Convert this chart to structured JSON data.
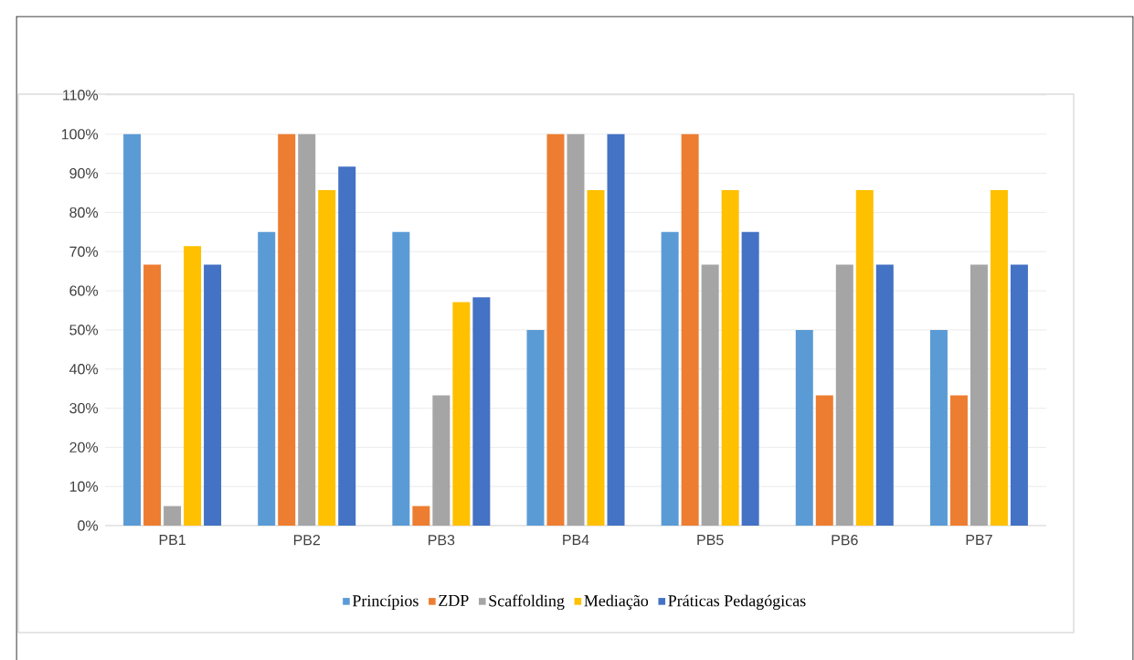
{
  "chart_data": {
    "type": "bar",
    "categories": [
      "PB1",
      "PB2",
      "PB3",
      "PB4",
      "PB5",
      "PB6",
      "PB7"
    ],
    "series": [
      {
        "name": "Princípios",
        "color": "#5b9bd5",
        "values": [
          100,
          75,
          75,
          50,
          75,
          50,
          50
        ]
      },
      {
        "name": "ZDP",
        "color": "#ed7d31",
        "values": [
          66.7,
          100,
          5,
          100,
          100,
          33.3,
          33.3
        ]
      },
      {
        "name": "Scaffolding",
        "color": "#a5a5a5",
        "values": [
          5,
          100,
          33.3,
          100,
          66.7,
          66.7,
          66.7
        ]
      },
      {
        "name": "Mediação",
        "color": "#ffc000",
        "values": [
          71.4,
          85.7,
          57.1,
          85.7,
          85.7,
          85.7,
          85.7
        ]
      },
      {
        "name": "Práticas Pedagógicas",
        "color": "#4472c4",
        "values": [
          66.7,
          91.7,
          58.3,
          100,
          75,
          66.7,
          66.7
        ]
      }
    ],
    "ylim": [
      0,
      110
    ],
    "yticks": [
      {
        "value": 0,
        "label": "0%"
      },
      {
        "value": 10,
        "label": "10%"
      },
      {
        "value": 20,
        "label": "20%"
      },
      {
        "value": 30,
        "label": "30%"
      },
      {
        "value": 40,
        "label": "40%"
      },
      {
        "value": 50,
        "label": "50%"
      },
      {
        "value": 60,
        "label": "60%"
      },
      {
        "value": 70,
        "label": "70%"
      },
      {
        "value": 80,
        "label": "80%"
      },
      {
        "value": 90,
        "label": "90%"
      },
      {
        "value": 100,
        "label": "100%"
      },
      {
        "value": 110,
        "label": "110%"
      }
    ],
    "grid": "y",
    "legend": "bottom"
  }
}
